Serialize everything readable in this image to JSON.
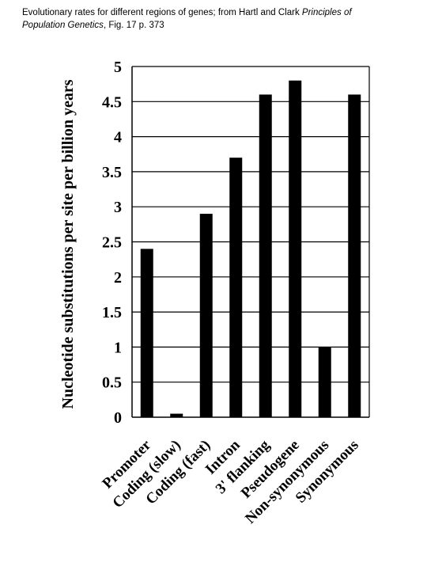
{
  "caption": {
    "part1": "Evolutionary rates for different regions of genes; from Hartl and Clark ",
    "title_italic": "Principles of Population Genetics",
    "part2": ", Fig. 17 p. 373"
  },
  "chart_data": {
    "type": "bar",
    "categories": [
      "Promoter",
      "Coding (slow)",
      "Coding (fast)",
      "Intron",
      "3' flanking",
      "Pseudogene",
      "Non-synonymous",
      "Synonymous"
    ],
    "values": [
      2.4,
      0.05,
      2.9,
      3.7,
      4.6,
      4.8,
      1.0,
      4.6
    ],
    "ylabel": "Nucleotide substitutions per site per billion years",
    "ylim": [
      0,
      5
    ],
    "yticks": [
      "0",
      "0.5",
      "1",
      "1.5",
      "2",
      "2.5",
      "3",
      "3.5",
      "4",
      "4.5",
      "5"
    ],
    "grid": true,
    "bar_color": "#000000"
  }
}
